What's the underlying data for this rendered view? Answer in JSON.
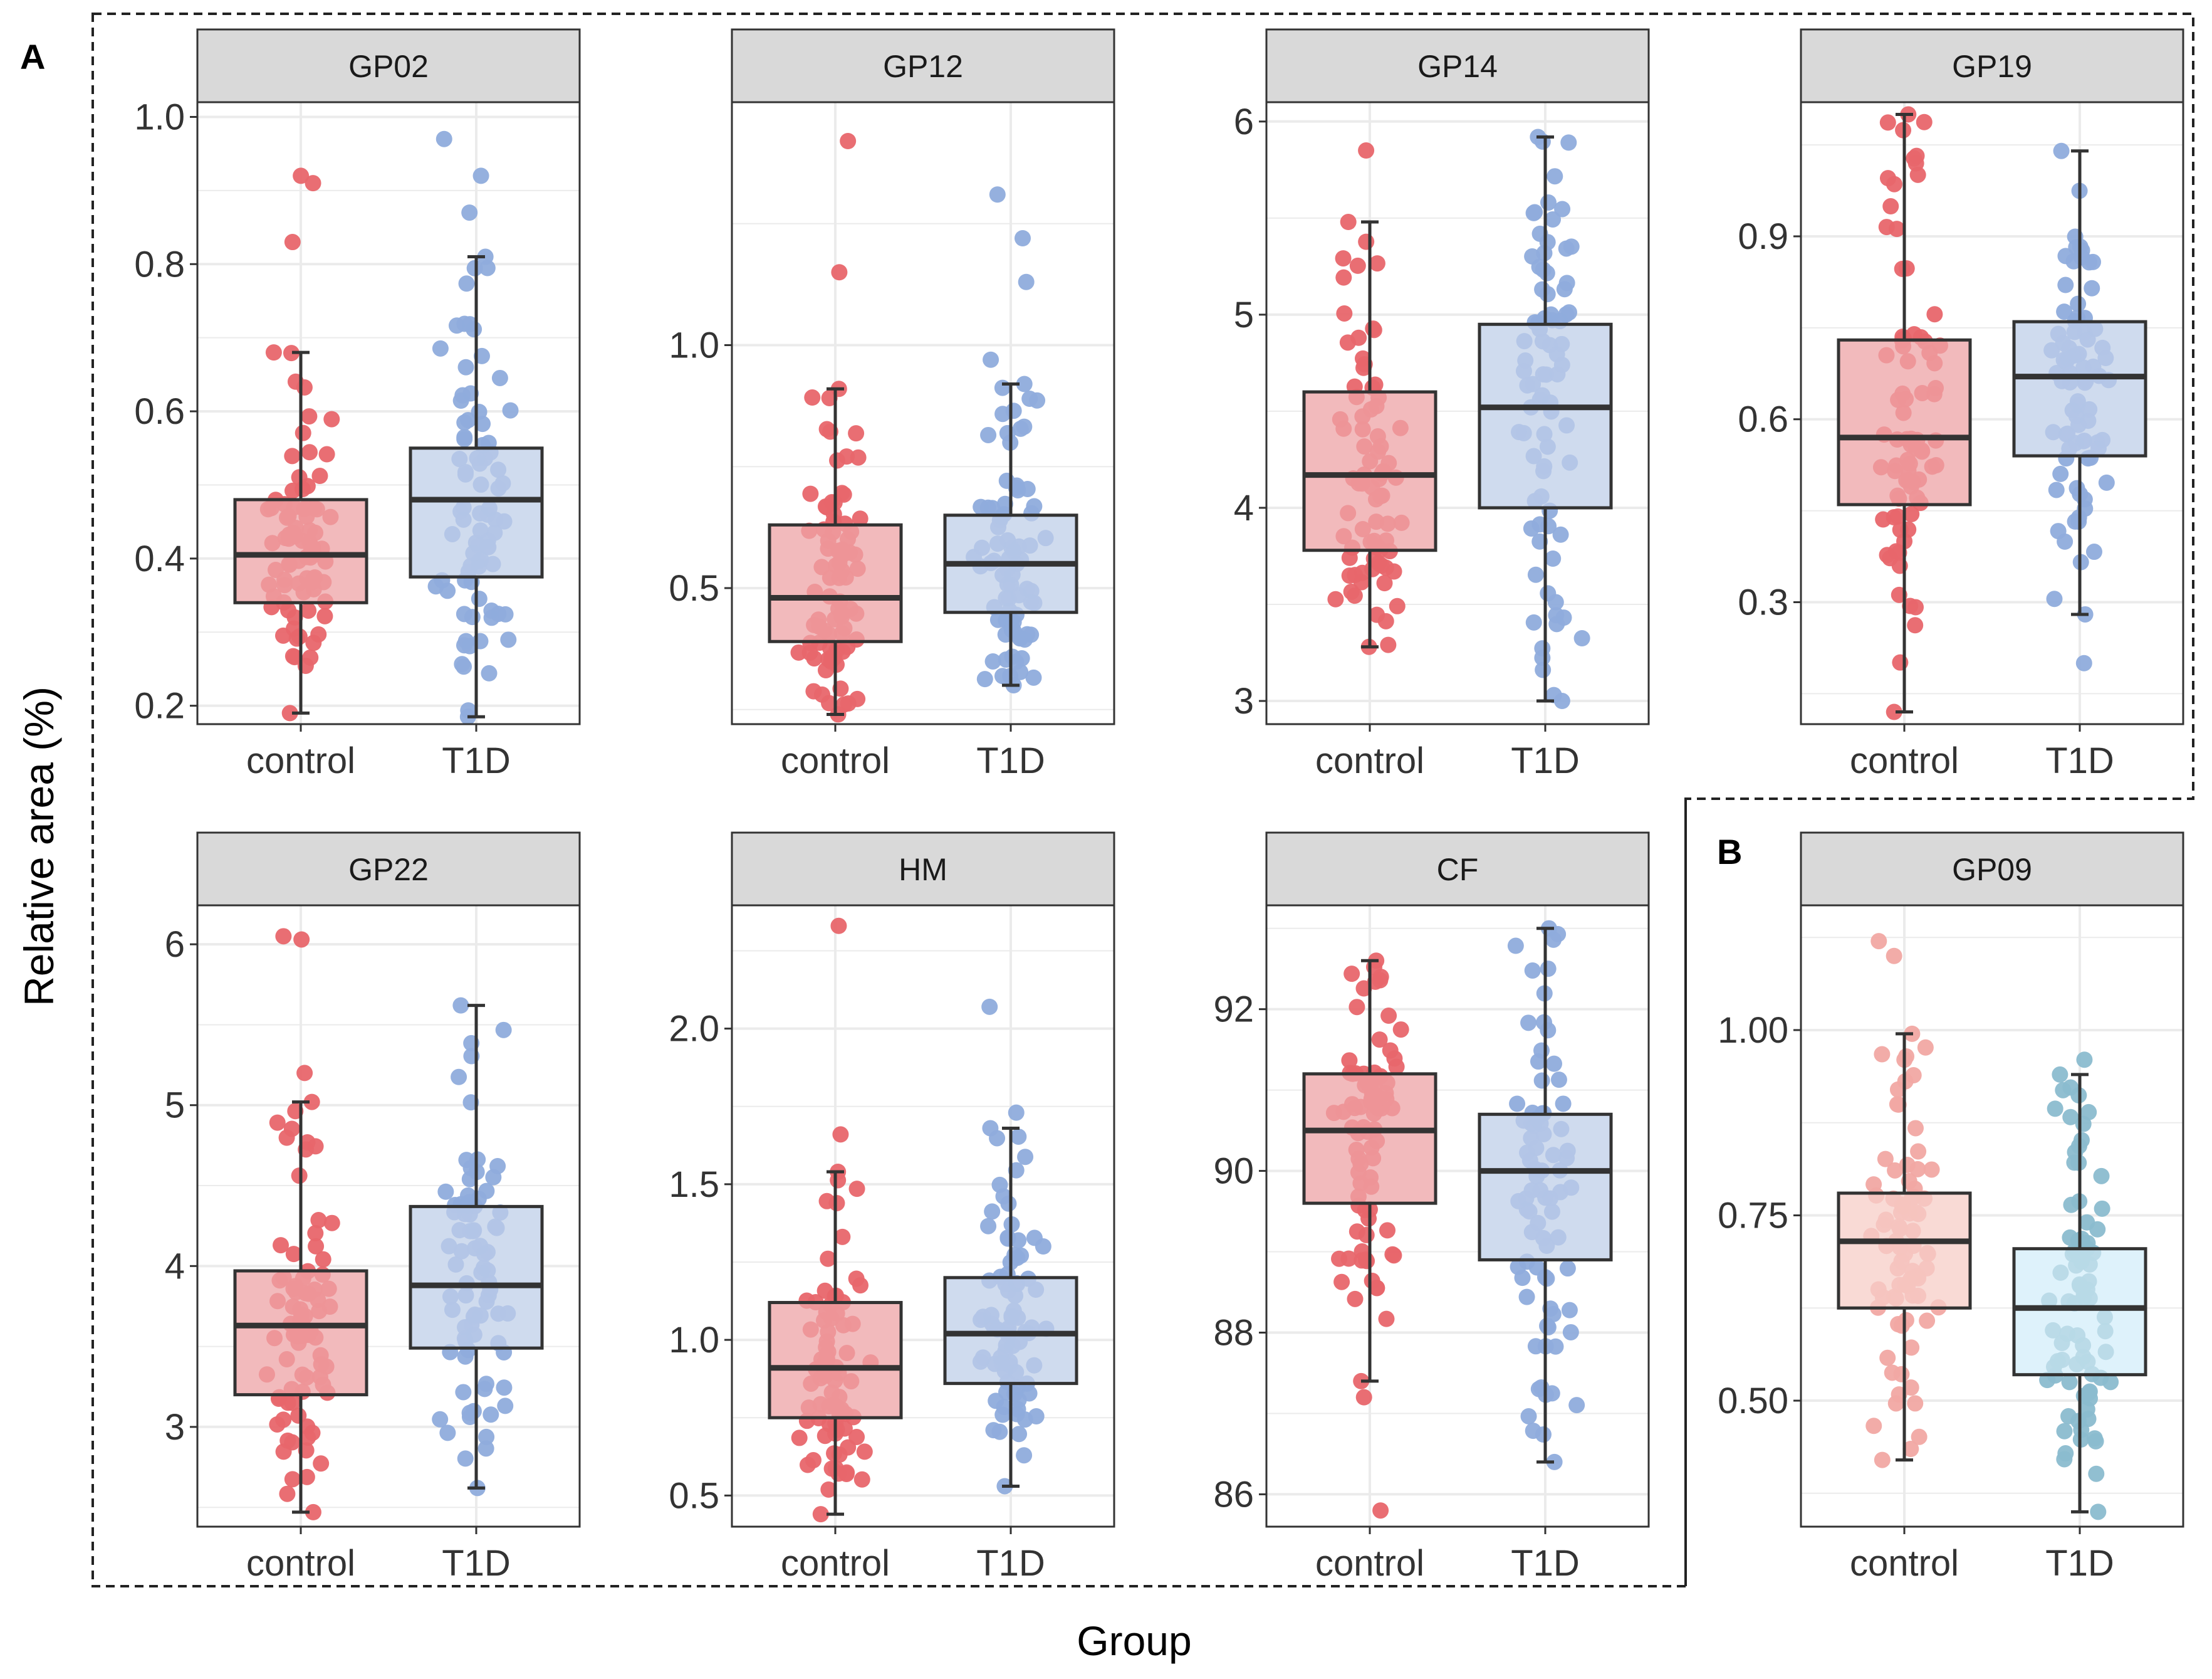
{
  "colors": {
    "control_point": "#e8666b",
    "control_box": "#f2babc",
    "t1d_point": "#8facdc",
    "t1d_box": "#cfdbee",
    "control_point_b": "#f1a8a3",
    "control_box_b": "#f9dad6",
    "t1d_point_b": "#8bbccf",
    "t1d_box_b": "#def2fb",
    "strip_fill": "#d9d9d9",
    "grid": "#ebebeb"
  },
  "chart_data": {
    "type": "boxplot",
    "xlabel": "Group",
    "ylabel": "Relative area (%)",
    "panel_labels": [
      "A",
      "B"
    ],
    "categories": [
      "control",
      "T1D"
    ],
    "facets": [
      {
        "name": "GP02",
        "group": "A",
        "ylim": [
          0.175,
          1.02
        ],
        "yticks": [
          "0.2",
          "0.4",
          "0.6",
          "0.8",
          "1.0"
        ],
        "ytick_values": [
          0.2,
          0.4,
          0.6,
          0.8,
          1.0
        ],
        "boxes": [
          {
            "group": "control",
            "whisker_low": 0.19,
            "q1": 0.34,
            "median": 0.405,
            "q3": 0.48,
            "whisker_high": 0.68,
            "outliers": [
              0.92,
              0.91,
              0.83
            ]
          },
          {
            "group": "T1D",
            "whisker_low": 0.185,
            "q1": 0.375,
            "median": 0.48,
            "q3": 0.55,
            "whisker_high": 0.81,
            "outliers": [
              0.97,
              0.92,
              0.87
            ]
          }
        ]
      },
      {
        "name": "GP12",
        "group": "A",
        "ylim": [
          0.22,
          1.5
        ],
        "yticks": [
          "0.5",
          "1.0"
        ],
        "ytick_values": [
          0.5,
          1.0
        ],
        "boxes": [
          {
            "group": "control",
            "whisker_low": 0.24,
            "q1": 0.39,
            "median": 0.48,
            "q3": 0.63,
            "whisker_high": 0.91,
            "outliers": [
              1.42,
              1.15
            ]
          },
          {
            "group": "T1D",
            "whisker_low": 0.3,
            "q1": 0.45,
            "median": 0.55,
            "q3": 0.65,
            "whisker_high": 0.92,
            "outliers": [
              1.31,
              1.22,
              1.13,
              0.97
            ]
          }
        ]
      },
      {
        "name": "GP14",
        "group": "A",
        "ylim": [
          2.88,
          6.1
        ],
        "yticks": [
          "3",
          "4",
          "5",
          "6"
        ],
        "ytick_values": [
          3,
          4,
          5,
          6
        ],
        "boxes": [
          {
            "group": "control",
            "whisker_low": 3.28,
            "q1": 3.78,
            "median": 4.17,
            "q3": 4.6,
            "whisker_high": 5.48,
            "outliers": [
              5.85
            ]
          },
          {
            "group": "T1D",
            "whisker_low": 3.0,
            "q1": 4.0,
            "median": 4.52,
            "q3": 4.95,
            "whisker_high": 5.92,
            "outliers": []
          }
        ]
      },
      {
        "name": "GP19",
        "group": "A",
        "ylim": [
          0.1,
          1.12
        ],
        "yticks": [
          "0.3",
          "0.6",
          "0.9"
        ],
        "ytick_values": [
          0.3,
          0.6,
          0.9
        ],
        "boxes": [
          {
            "group": "control",
            "whisker_low": 0.12,
            "q1": 0.46,
            "median": 0.57,
            "q3": 0.73,
            "whisker_high": 1.1,
            "outliers": []
          },
          {
            "group": "T1D",
            "whisker_low": 0.28,
            "q1": 0.54,
            "median": 0.67,
            "q3": 0.76,
            "whisker_high": 1.04,
            "outliers": [
              0.2
            ]
          }
        ]
      },
      {
        "name": "GP22",
        "group": "A",
        "ylim": [
          2.38,
          6.25
        ],
        "yticks": [
          "3",
          "4",
          "5",
          "6"
        ],
        "ytick_values": [
          3,
          4,
          5,
          6
        ],
        "boxes": [
          {
            "group": "control",
            "whisker_low": 2.47,
            "q1": 3.2,
            "median": 3.63,
            "q3": 3.97,
            "whisker_high": 5.02,
            "outliers": [
              6.05,
              6.03,
              5.2
            ]
          },
          {
            "group": "T1D",
            "whisker_low": 2.62,
            "q1": 3.49,
            "median": 3.88,
            "q3": 4.37,
            "whisker_high": 5.62,
            "outliers": []
          }
        ]
      },
      {
        "name": "HM",
        "group": "A",
        "ylim": [
          0.4,
          2.4
        ],
        "yticks": [
          "0.5",
          "1.0",
          "1.5",
          "2.0"
        ],
        "ytick_values": [
          0.5,
          1.0,
          1.5,
          2.0
        ],
        "boxes": [
          {
            "group": "control",
            "whisker_low": 0.44,
            "q1": 0.75,
            "median": 0.91,
            "q3": 1.12,
            "whisker_high": 1.54,
            "outliers": [
              2.33,
              1.66
            ]
          },
          {
            "group": "T1D",
            "whisker_low": 0.53,
            "q1": 0.86,
            "median": 1.02,
            "q3": 1.2,
            "whisker_high": 1.68,
            "outliers": [
              2.07,
              1.73
            ]
          }
        ]
      },
      {
        "name": "CF",
        "group": "A",
        "ylim": [
          85.6,
          93.3
        ],
        "yticks": [
          "86",
          "88",
          "90",
          "92"
        ],
        "ytick_values": [
          86,
          88,
          90,
          92
        ],
        "boxes": [
          {
            "group": "control",
            "whisker_low": 87.4,
            "q1": 89.6,
            "median": 90.5,
            "q3": 91.2,
            "whisker_high": 92.6,
            "outliers": [
              85.8,
              87.2
            ]
          },
          {
            "group": "T1D",
            "whisker_low": 86.4,
            "q1": 88.9,
            "median": 90.0,
            "q3": 90.7,
            "whisker_high": 93.0,
            "outliers": []
          }
        ]
      },
      {
        "name": "GP09",
        "group": "B",
        "ylim": [
          0.33,
          1.17
        ],
        "yticks": [
          "0.50",
          "0.75",
          "1.00"
        ],
        "ytick_values": [
          0.5,
          0.75,
          1.0
        ],
        "boxes": [
          {
            "group": "control",
            "whisker_low": 0.42,
            "q1": 0.625,
            "median": 0.715,
            "q3": 0.78,
            "whisker_high": 0.995,
            "outliers": [
              1.12,
              1.1
            ]
          },
          {
            "group": "T1D",
            "whisker_low": 0.35,
            "q1": 0.535,
            "median": 0.625,
            "q3": 0.705,
            "whisker_high": 0.94,
            "outliers": [
              0.96
            ]
          }
        ]
      }
    ]
  }
}
